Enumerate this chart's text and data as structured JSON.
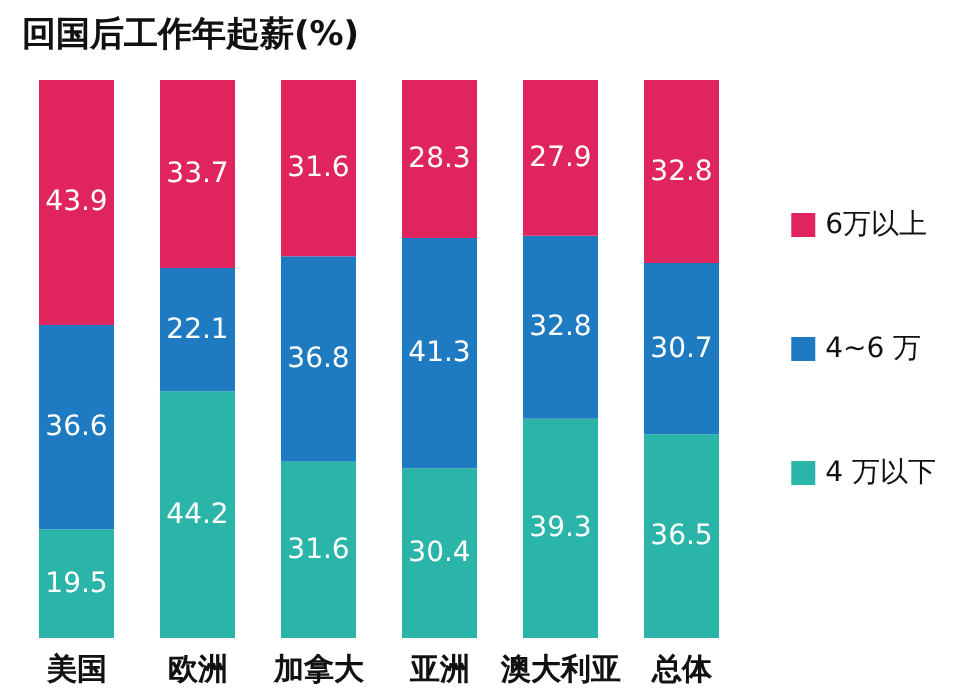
{
  "chart_data": {
    "type": "bar",
    "title": "回国后工作年起薪(%)",
    "stacked": true,
    "data_labels": true,
    "legend": "right",
    "categories": [
      "美国",
      "欧洲",
      "加拿大",
      "亚洲",
      "澳大利亚",
      "总体"
    ],
    "series": [
      {
        "name": "4 万以下",
        "color": "#2bb5a8",
        "values": [
          19.5,
          44.2,
          31.6,
          30.4,
          39.3,
          36.5
        ]
      },
      {
        "name": "4~6 万",
        "color": "#1f7bc1",
        "values": [
          36.6,
          22.1,
          36.8,
          41.3,
          32.8,
          30.7
        ]
      },
      {
        "name": "6万以上",
        "color": "#e0245e",
        "values": [
          43.9,
          33.7,
          31.6,
          28.3,
          27.9,
          32.8
        ]
      }
    ]
  }
}
